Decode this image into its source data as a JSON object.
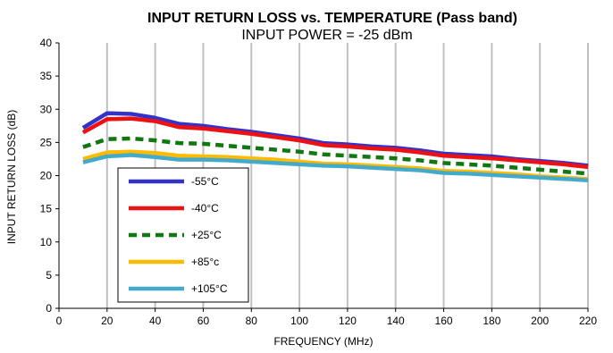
{
  "chart_data": {
    "type": "line",
    "title": "INPUT RETURN LOSS vs. TEMPERATURE (Pass band)",
    "subtitle": "INPUT POWER = -25 dBm",
    "xlabel": "FREQUENCY  (MHz)",
    "ylabel": "INPUT RETURN LOSS (dB)",
    "xlim": [
      0,
      220
    ],
    "ylim": [
      0,
      40
    ],
    "xticks": [
      0,
      20,
      40,
      60,
      80,
      100,
      120,
      140,
      160,
      180,
      200,
      220
    ],
    "yticks": [
      0,
      5,
      10,
      15,
      20,
      25,
      30,
      35,
      40
    ],
    "grid": "vertical",
    "legend_position": "lower-left (inside)",
    "x": [
      10,
      20,
      30,
      40,
      50,
      60,
      70,
      80,
      90,
      100,
      110,
      120,
      130,
      140,
      150,
      160,
      170,
      180,
      190,
      200,
      210,
      220
    ],
    "series": [
      {
        "name": "-55°C",
        "color": "#3333cc",
        "style": "solid",
        "values": [
          27.2,
          29.4,
          29.3,
          28.7,
          27.8,
          27.5,
          27.0,
          26.6,
          26.1,
          25.6,
          24.9,
          24.7,
          24.4,
          24.2,
          23.8,
          23.3,
          23.1,
          22.9,
          22.5,
          22.2,
          21.9,
          21.5
        ]
      },
      {
        "name": "-40°C",
        "color": "#ee1111",
        "style": "solid",
        "values": [
          26.5,
          28.5,
          28.6,
          28.2,
          27.3,
          27.1,
          26.7,
          26.3,
          25.8,
          25.3,
          24.6,
          24.4,
          24.1,
          23.9,
          23.5,
          23.0,
          22.8,
          22.6,
          22.3,
          22.0,
          21.7,
          21.3
        ]
      },
      {
        "name": "+25°C",
        "color": "#117711",
        "style": "dashed",
        "values": [
          24.3,
          25.5,
          25.6,
          25.3,
          24.9,
          24.8,
          24.5,
          24.2,
          23.9,
          23.6,
          23.2,
          23.0,
          22.8,
          22.6,
          22.3,
          21.9,
          21.7,
          21.5,
          21.2,
          20.9,
          20.6,
          20.3
        ]
      },
      {
        "name": "+85°c",
        "color": "#ffbb00",
        "style": "solid",
        "values": [
          22.5,
          23.5,
          23.6,
          23.4,
          23.0,
          22.9,
          22.8,
          22.6,
          22.4,
          22.1,
          21.8,
          21.7,
          21.5,
          21.3,
          21.1,
          20.7,
          20.6,
          20.4,
          20.2,
          19.9,
          19.7,
          19.5
        ]
      },
      {
        "name": "+105°C",
        "color": "#44aacc",
        "style": "solid",
        "values": [
          22.0,
          22.9,
          23.1,
          22.8,
          22.4,
          22.4,
          22.3,
          22.1,
          21.9,
          21.7,
          21.5,
          21.4,
          21.2,
          21.0,
          20.8,
          20.4,
          20.3,
          20.1,
          19.9,
          19.7,
          19.5,
          19.3
        ]
      }
    ]
  }
}
